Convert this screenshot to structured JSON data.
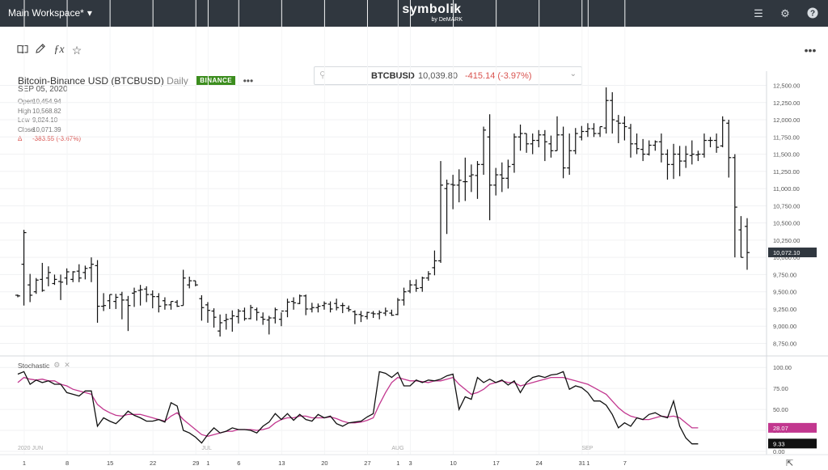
{
  "topbar": {
    "workspace": "Main Workspace*",
    "logo": "symbolik",
    "logo_sub": "by DeMARK"
  },
  "search": {
    "symbol": "BTCBUSD",
    "price": "10,039.80",
    "change": "-415.14 (-3.97%)"
  },
  "header": {
    "title": "Bitcoin-Binance USD (BTCBUSD)",
    "period": "Daily",
    "exchange": "BINANCE",
    "more": "•••",
    "date": "SEP 05, 2020"
  },
  "ohlc": [
    {
      "k": "Open",
      "v": "10,454.94"
    },
    {
      "k": "High",
      "v": "10,568.82"
    },
    {
      "k": "Low",
      "v": "9,824.10"
    },
    {
      "k": "Close",
      "v": "10,071.39"
    },
    {
      "k": "Δ",
      "v": "-383.55 (-3.67%)"
    }
  ],
  "study": {
    "name": "Stochastic"
  },
  "colors": {
    "price_up": "#111111",
    "signal": "#c2378f",
    "negative": "#d9534f",
    "badge": "#3c8d1e",
    "topbar": "#30373f"
  },
  "chart_data": {
    "type": "ohlc",
    "price_axis": {
      "ticks": [
        "8,750.00",
        "9,000.00",
        "9,250.00",
        "9,500.00",
        "9,750.00",
        "10,000.00",
        "10,250.00",
        "10,500.00",
        "10,750.00",
        "11,000.00",
        "11,250.00",
        "11,500.00",
        "11,750.00",
        "12,000.00",
        "12,250.00",
        "12,500.00"
      ],
      "range": [
        8650,
        12600
      ],
      "last_price_label": "10,072.10"
    },
    "stoch_axis": {
      "ticks": [
        "0.00",
        "25.00",
        "50.00",
        "75.00",
        "100.00"
      ],
      "range": [
        0,
        105
      ]
    },
    "stoch_labels": {
      "k_value": "9.33",
      "d_value": "28.07"
    },
    "month_labels": [
      "2020 JUN",
      "JUL",
      "AUG",
      "SEP"
    ],
    "x_ticks": [
      "1",
      "8",
      "15",
      "22",
      "29",
      "1",
      "6",
      "13",
      "20",
      "27",
      "1",
      "3",
      "10",
      "17",
      "24",
      "31",
      "1",
      "7"
    ],
    "bars": [
      [
        9450,
        9460,
        9420,
        9440
      ],
      [
        9900,
        10400,
        9300,
        10360
      ],
      [
        9600,
        9760,
        9350,
        9450
      ],
      [
        9500,
        9700,
        9470,
        9670
      ],
      [
        9680,
        9920,
        9500,
        9520
      ],
      [
        9700,
        9870,
        9580,
        9780
      ],
      [
        9620,
        9750,
        9600,
        9680
      ],
      [
        9650,
        9750,
        9380,
        9640
      ],
      [
        9700,
        9840,
        9600,
        9790
      ],
      [
        9680,
        9800,
        9640,
        9790
      ],
      [
        9800,
        9900,
        9640,
        9700
      ],
      [
        9780,
        9880,
        9680,
        9840
      ],
      [
        9850,
        10000,
        9640,
        9900
      ],
      [
        9880,
        9960,
        9050,
        9290
      ],
      [
        9290,
        9480,
        9220,
        9300
      ],
      [
        9370,
        9460,
        9250,
        9460
      ],
      [
        9360,
        9470,
        9250,
        9420
      ],
      [
        9460,
        9500,
        9100,
        9380
      ],
      [
        9380,
        9440,
        8930,
        9300
      ],
      [
        9480,
        9560,
        9280,
        9500
      ],
      [
        9520,
        9600,
        9300,
        9530
      ],
      [
        9540,
        9580,
        9350,
        9460
      ],
      [
        9460,
        9520,
        9260,
        9430
      ],
      [
        9430,
        9480,
        9200,
        9290
      ],
      [
        9370,
        9420,
        9240,
        9310
      ],
      [
        9310,
        9360,
        9240,
        9360
      ],
      [
        9350,
        9380,
        9280,
        9290
      ],
      [
        9300,
        9820,
        9300,
        9700
      ],
      [
        9600,
        9720,
        9550,
        9660
      ],
      [
        9660,
        9660,
        9580,
        9600
      ],
      [
        9400,
        9450,
        9080,
        9270
      ],
      [
        9310,
        9350,
        9050,
        9230
      ],
      [
        9220,
        9260,
        8980,
        9130
      ],
      [
        8930,
        9170,
        8850,
        9050
      ],
      [
        9080,
        9180,
        8950,
        9100
      ],
      [
        9110,
        9230,
        8920,
        9150
      ],
      [
        9140,
        9250,
        9040,
        9220
      ],
      [
        9220,
        9270,
        9080,
        9110
      ],
      [
        9110,
        9310,
        9100,
        9270
      ],
      [
        9240,
        9270,
        9080,
        9200
      ],
      [
        9130,
        9200,
        9020,
        9100
      ],
      [
        9090,
        9150,
        8880,
        9120
      ],
      [
        9120,
        9270,
        9040,
        9240
      ],
      [
        9100,
        9200,
        9000,
        9220
      ],
      [
        9220,
        9400,
        9130,
        9350
      ],
      [
        9360,
        9420,
        9240,
        9340
      ],
      [
        9330,
        9460,
        9320,
        9440
      ],
      [
        9440,
        9460,
        9160,
        9250
      ],
      [
        9250,
        9340,
        9200,
        9270
      ],
      [
        9270,
        9330,
        9200,
        9290
      ],
      [
        9300,
        9360,
        9240,
        9330
      ],
      [
        9320,
        9360,
        9200,
        9250
      ],
      [
        9330,
        9400,
        9230,
        9270
      ],
      [
        9300,
        9340,
        9190,
        9300
      ],
      [
        9260,
        9300,
        9210,
        9240
      ],
      [
        9210,
        9230,
        9030,
        9170
      ],
      [
        9170,
        9220,
        9060,
        9150
      ],
      [
        9140,
        9210,
        9100,
        9200
      ],
      [
        9190,
        9220,
        9120,
        9180
      ],
      [
        9180,
        9230,
        9100,
        9200
      ],
      [
        9190,
        9270,
        9150,
        9220
      ],
      [
        9190,
        9240,
        9150,
        9160
      ],
      [
        9170,
        9410,
        9160,
        9380
      ],
      [
        9380,
        9560,
        9300,
        9500
      ],
      [
        9510,
        9670,
        9480,
        9600
      ],
      [
        9600,
        9680,
        9500,
        9550
      ],
      [
        9560,
        9720,
        9500,
        9700
      ],
      [
        9700,
        9800,
        9660,
        9760
      ],
      [
        9850,
        10100,
        9740,
        9950
      ],
      [
        9950,
        11400,
        9920,
        11050
      ],
      [
        11000,
        11130,
        10340,
        11070
      ],
      [
        11060,
        11200,
        10700,
        11050
      ],
      [
        11050,
        11280,
        10800,
        11120
      ],
      [
        11100,
        11450,
        10820,
        11100
      ],
      [
        11180,
        11350,
        10950,
        11200
      ],
      [
        11190,
        11400,
        10850,
        11350
      ],
      [
        11350,
        11900,
        11200,
        11850
      ],
      [
        11750,
        12080,
        10540,
        11050
      ],
      [
        11050,
        11300,
        10900,
        11200
      ],
      [
        11200,
        11380,
        10950,
        11150
      ],
      [
        11150,
        11420,
        11000,
        11320
      ],
      [
        11350,
        11800,
        11230,
        11750
      ],
      [
        11750,
        11930,
        11550,
        11800
      ],
      [
        11800,
        11800,
        11520,
        11650
      ],
      [
        11650,
        11800,
        11500,
        11700
      ],
      [
        11700,
        11850,
        11600,
        11780
      ],
      [
        11780,
        11850,
        11400,
        11680
      ],
      [
        11650,
        11770,
        11450,
        11550
      ],
      [
        11550,
        12050,
        11550,
        11780
      ],
      [
        11780,
        11900,
        11150,
        11300
      ],
      [
        11300,
        11800,
        11200,
        11550
      ],
      [
        11550,
        11880,
        11500,
        11800
      ],
      [
        11750,
        11910,
        11700,
        11830
      ],
      [
        11830,
        11950,
        11750,
        11870
      ],
      [
        11870,
        11950,
        11750,
        11800
      ],
      [
        11800,
        11900,
        11750,
        11900
      ],
      [
        11880,
        12470,
        11800,
        12280
      ],
      [
        12280,
        12400,
        11800,
        12000
      ],
      [
        11980,
        12070,
        11660,
        11950
      ],
      [
        11950,
        12050,
        11700,
        11900
      ],
      [
        11880,
        11940,
        11450,
        11650
      ],
      [
        11650,
        11800,
        11500,
        11580
      ],
      [
        11570,
        11720,
        11400,
        11500
      ],
      [
        11500,
        11700,
        11480,
        11630
      ],
      [
        11630,
        11700,
        11550,
        11680
      ],
      [
        11680,
        11800,
        11380,
        11500
      ],
      [
        11500,
        11570,
        11130,
        11350
      ],
      [
        11350,
        11650,
        11140,
        11500
      ],
      [
        11500,
        11620,
        11180,
        11400
      ],
      [
        11400,
        11620,
        11300,
        11500
      ],
      [
        11480,
        11700,
        11350,
        11500
      ],
      [
        11490,
        11550,
        11400,
        11500
      ],
      [
        11500,
        11800,
        11450,
        11700
      ],
      [
        11700,
        11750,
        11600,
        11700
      ],
      [
        11700,
        11800,
        11520,
        11600
      ],
      [
        11620,
        12050,
        11600,
        11990
      ],
      [
        11950,
        12000,
        11160,
        11450
      ],
      [
        11450,
        11500,
        10000,
        10730
      ],
      [
        10400,
        10600,
        10000,
        10000
      ],
      [
        10450,
        10570,
        9820,
        10070
      ]
    ],
    "stoch_k": [
      92,
      95,
      80,
      85,
      82,
      84,
      80,
      80,
      70,
      68,
      66,
      72,
      72,
      30,
      40,
      36,
      33,
      40,
      48,
      43,
      40,
      36,
      36,
      38,
      35,
      58,
      54,
      25,
      22,
      17,
      10,
      20,
      28,
      22,
      24,
      28,
      26,
      26,
      25,
      22,
      30,
      35,
      45,
      38,
      45,
      37,
      44,
      38,
      36,
      44,
      40,
      42,
      33,
      30,
      34,
      35,
      36,
      41,
      45,
      95,
      93,
      88,
      94,
      78,
      78,
      85,
      82,
      85,
      84,
      86,
      90,
      92,
      50,
      65,
      62,
      88,
      82,
      86,
      82,
      85,
      79,
      84,
      70,
      82,
      88,
      90,
      88,
      91,
      92,
      95,
      74,
      78,
      76,
      70,
      60,
      60,
      55,
      44,
      28,
      34,
      30,
      40,
      38,
      44,
      46,
      42,
      40,
      60,
      30,
      16,
      9,
      9
    ],
    "stoch_d": [
      82,
      88,
      86,
      85,
      86,
      84,
      84,
      80,
      78,
      74,
      72,
      70,
      68,
      56,
      50,
      46,
      43,
      42,
      44,
      44,
      44,
      42,
      40,
      38,
      36,
      42,
      46,
      38,
      32,
      26,
      20,
      18,
      20,
      22,
      24,
      24,
      26,
      26,
      26,
      25,
      26,
      28,
      34,
      38,
      40,
      40,
      42,
      42,
      40,
      40,
      40,
      41,
      39,
      36,
      34,
      34,
      35,
      37,
      40,
      56,
      70,
      82,
      88,
      86,
      84,
      84,
      83,
      82,
      84,
      84,
      86,
      88,
      80,
      74,
      68,
      70,
      74,
      80,
      82,
      84,
      82,
      82,
      78,
      80,
      82,
      84,
      86,
      88,
      88,
      88,
      86,
      84,
      82,
      80,
      76,
      72,
      68,
      60,
      52,
      46,
      42,
      40,
      38,
      38,
      40,
      42,
      41,
      42,
      40,
      34,
      28,
      28
    ]
  }
}
